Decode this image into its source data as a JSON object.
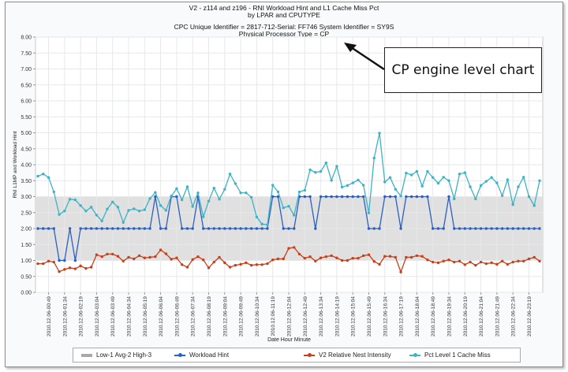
{
  "chart_data": {
    "type": "line",
    "title": [
      "V2 - z114 and z196 - RNI Workload Hint and L1 Cache Miss Pct",
      "by LPAR and CPUTYPE"
    ],
    "subtitle": [
      "CPC Unique Identifier = 2817-712-Serial: FF746 System Identifier = SY9S",
      "Physical Processor Type = CP"
    ],
    "xlabel": "Date Hour Minute",
    "ylabel": "RNI L1MP and Workload Hint",
    "ylim": [
      0,
      8
    ],
    "ytick_step": 0.5,
    "grid": true,
    "legend_position": "bottom",
    "x_tick_labels": [
      "2010.12.06-00:49",
      "2010.12.06-01:34",
      "2010.12.06-02:19",
      "2010.12.06-03:04",
      "2010.12.06-03:49",
      "2010.12.06-04:34",
      "2010.12.06-05:19",
      "2010.12.06-06:04",
      "2010.12.06-06:49",
      "2010.12.06-07:34",
      "2010.12.06-08:19",
      "2010.12.06-09:04",
      "2010.12.06-09:49",
      "2010.12.06-10:34",
      "2010.12.06-11:19",
      "2010.12.06-12:04",
      "2010.12.06-12:49",
      "2010.12.06-13:34",
      "2010.12.06-14:19",
      "2010.12.06-15:04",
      "2010.12.06-15:49",
      "2010.12.06-16:34",
      "2010.12.06-17:19",
      "2010.12.06-18:04",
      "2010.12.06-18:49",
      "2010.12.06-19:34",
      "2010.12.06-20:19",
      "2010.12.06-21:04",
      "2010.12.06-21:49",
      "2010.12.06-22:34",
      "2010.12.06-23:19"
    ],
    "band": {
      "name": "Low-1 Avg-2 High-3",
      "from": 1,
      "to": 3,
      "color": "#e0e0e0"
    },
    "series": [
      {
        "name": "Workload Hint",
        "color": "#2b5fc4",
        "values": [
          2,
          2,
          2,
          2,
          1,
          1,
          2,
          1,
          2,
          2,
          2,
          2,
          2,
          2,
          2,
          2,
          2,
          2,
          2,
          2,
          2,
          2,
          3,
          2,
          2,
          3,
          3,
          2,
          2,
          2,
          3,
          2,
          2,
          2,
          2,
          2,
          2,
          2,
          2,
          2,
          2,
          2,
          2,
          2,
          3,
          3,
          2,
          2,
          2,
          3,
          3,
          3,
          2,
          3,
          3,
          3,
          3,
          3,
          3,
          3,
          3,
          3,
          2,
          2,
          2,
          3,
          3,
          3,
          2,
          3,
          3,
          3,
          3,
          3,
          2,
          2,
          2,
          3,
          2,
          2,
          2,
          2,
          2,
          2,
          2,
          2,
          2,
          2,
          2,
          2,
          2,
          2,
          2,
          2,
          2
        ]
      },
      {
        "name": "V2 Relative Nest Intensity",
        "color": "#c8401a",
        "values": [
          0.9,
          0.9,
          0.98,
          0.95,
          0.65,
          0.72,
          0.77,
          0.74,
          0.83,
          0.75,
          0.79,
          1.18,
          1.12,
          1.2,
          1.2,
          1.13,
          0.98,
          1.1,
          1.05,
          1.15,
          1.08,
          1.1,
          1.12,
          1.33,
          1.21,
          1.04,
          1.08,
          0.87,
          0.79,
          1.03,
          1.12,
          1.02,
          0.77,
          0.95,
          1.1,
          0.93,
          0.79,
          0.85,
          0.88,
          0.93,
          0.85,
          0.87,
          0.87,
          0.9,
          1.02,
          1.05,
          1.05,
          1.38,
          1.41,
          1.2,
          1.07,
          1.12,
          0.98,
          1.08,
          1.12,
          1.15,
          1.08,
          1.0,
          1.0,
          1.07,
          1.07,
          1.15,
          1.18,
          0.97,
          0.88,
          1.13,
          1.13,
          1.1,
          0.64,
          1.1,
          1.1,
          1.15,
          1.13,
          1.02,
          0.95,
          0.93,
          0.98,
          1.02,
          0.95,
          0.98,
          0.87,
          0.95,
          0.85,
          0.95,
          0.9,
          0.93,
          0.88,
          0.98,
          0.88,
          0.95,
          0.98,
          0.98,
          1.05,
          1.1,
          0.98
        ]
      },
      {
        "name": "Pct Level 1 Cache Miss",
        "color": "#3db3c4",
        "values": [
          3.64,
          3.71,
          3.6,
          3.15,
          2.44,
          2.55,
          2.92,
          2.9,
          2.72,
          2.55,
          2.67,
          2.42,
          2.24,
          2.61,
          2.83,
          2.67,
          2.19,
          2.57,
          2.62,
          2.55,
          2.59,
          2.94,
          3.13,
          2.72,
          2.57,
          3.02,
          3.25,
          2.9,
          3.31,
          2.69,
          3.12,
          2.37,
          2.86,
          3.27,
          2.92,
          3.23,
          3.71,
          3.41,
          3.12,
          3.12,
          2.98,
          2.36,
          2.14,
          2.12,
          3.36,
          3.15,
          2.65,
          2.7,
          2.42,
          3.15,
          3.2,
          3.84,
          3.76,
          3.79,
          4.06,
          3.51,
          3.95,
          3.3,
          3.35,
          3.43,
          3.52,
          3.36,
          2.49,
          4.21,
          4.99,
          3.46,
          3.6,
          3.23,
          3.02,
          3.74,
          3.68,
          3.79,
          3.33,
          3.79,
          3.6,
          3.42,
          3.61,
          3.5,
          2.93,
          3.71,
          3.75,
          3.31,
          2.93,
          3.35,
          3.48,
          3.6,
          3.43,
          3.03,
          3.53,
          2.75,
          3.31,
          3.61,
          3.0,
          2.72,
          3.5
        ]
      }
    ]
  },
  "annotation": {
    "text": "CP engine level chart"
  }
}
